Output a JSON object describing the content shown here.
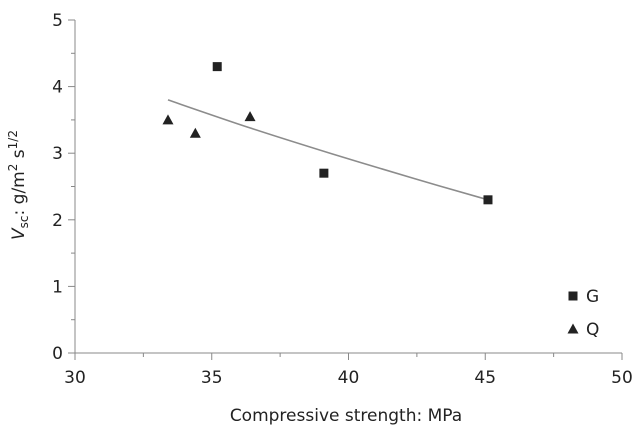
{
  "chart_data": {
    "type": "scatter",
    "xlabel": "Compressive strength: MPa",
    "ylabel": {
      "main": "V",
      "sub": "sc",
      "unit_pre": ": g/m",
      "unit_sup": "2",
      "unit_mid": " s",
      "unit_sup2": "1/2"
    },
    "xlim": [
      30,
      50
    ],
    "ylim": [
      0,
      5
    ],
    "xticks": [
      "30",
      "35",
      "40",
      "45",
      "50"
    ],
    "yticks": [
      "0",
      "1",
      "2",
      "3",
      "4",
      "5"
    ],
    "grid": false,
    "legend_position": "bottom-right",
    "series": [
      {
        "name": "G",
        "marker": "square",
        "color": "#222222",
        "points": [
          {
            "x": 35.2,
            "y": 4.3
          },
          {
            "x": 39.1,
            "y": 2.7
          },
          {
            "x": 45.1,
            "y": 2.3
          }
        ]
      },
      {
        "name": "Q",
        "marker": "triangle",
        "color": "#222222",
        "points": [
          {
            "x": 33.4,
            "y": 3.5
          },
          {
            "x": 34.4,
            "y": 3.3
          },
          {
            "x": 36.4,
            "y": 3.55
          }
        ]
      }
    ],
    "trendline": {
      "color": "#8c8c8c",
      "points": [
        {
          "x": 33.4,
          "y": 3.8
        },
        {
          "x": 36.4,
          "y": 3.38
        },
        {
          "x": 39.4,
          "y": 2.99
        },
        {
          "x": 42.4,
          "y": 2.62
        },
        {
          "x": 45.1,
          "y": 2.3
        }
      ]
    }
  }
}
